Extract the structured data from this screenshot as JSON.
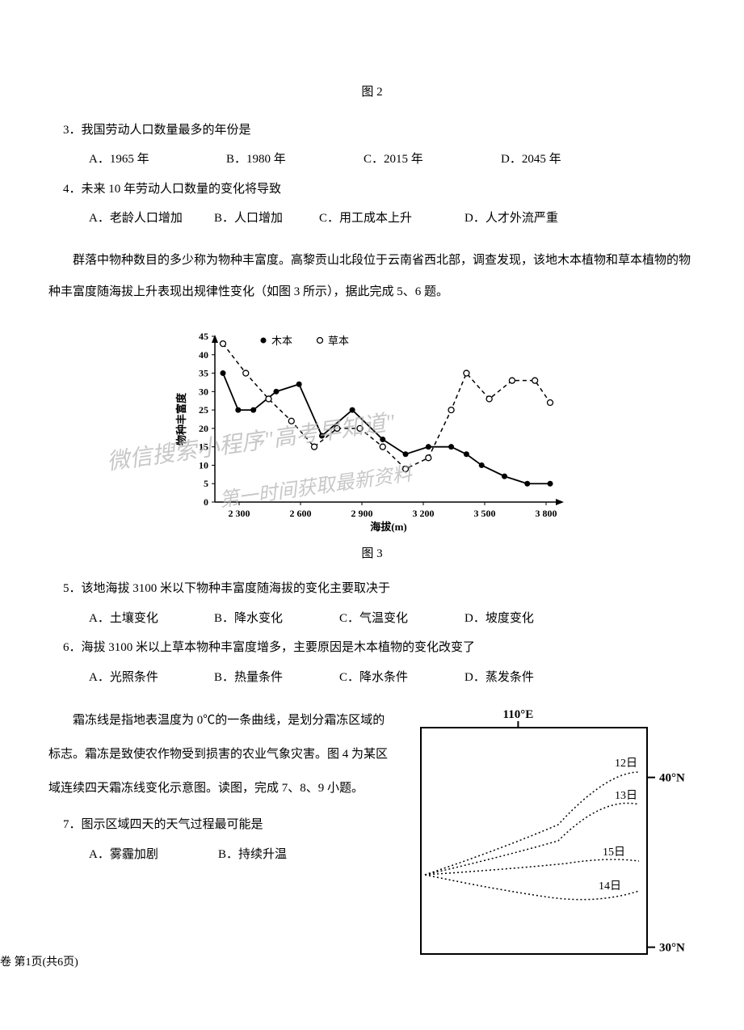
{
  "fig2_label": "图 2",
  "q3": {
    "text": "3．我国劳动人口数量最多的年份是",
    "opts": [
      "A．1965 年",
      "B．1980 年",
      "C．2015 年",
      "D．2045 年"
    ]
  },
  "q4": {
    "text": "4．未来 10 年劳动人口数量的变化将导致",
    "opts": [
      "A．老龄人口增加",
      "B．人口增加",
      "C．用工成本上升",
      "D．人才外流严重"
    ]
  },
  "passage1": "群落中物种数目的多少称为物种丰富度。高黎贡山北段位于云南省西北部，调查发现，该地木本植物和草本植物的物种丰富度随海拔上升表现出规律性变化（如图 3 所示），据此完成 5、6 题。",
  "chart1": {
    "ytitle": "物种丰富度",
    "xtitle": "海拔(m)",
    "yticks": [
      "0",
      "5",
      "10",
      "15",
      "20",
      "25",
      "30",
      "35",
      "40",
      "45"
    ],
    "xticks": [
      "2 300",
      "2 600",
      "2 900",
      "3 200",
      "3 500",
      "3 800"
    ],
    "legend_woody": "● 木本",
    "legend_herb": "○ 草本",
    "woody": [
      [
        0,
        35
      ],
      [
        20,
        25
      ],
      [
        40,
        25
      ],
      [
        70,
        30
      ],
      [
        100,
        32
      ],
      [
        130,
        18
      ],
      [
        170,
        25
      ],
      [
        210,
        17
      ],
      [
        240,
        13
      ],
      [
        270,
        15
      ],
      [
        300,
        15
      ],
      [
        320,
        13
      ],
      [
        340,
        10
      ],
      [
        370,
        7
      ],
      [
        400,
        5
      ],
      [
        430,
        5
      ]
    ],
    "herb": [
      [
        0,
        43
      ],
      [
        30,
        35
      ],
      [
        60,
        28
      ],
      [
        90,
        22
      ],
      [
        120,
        15
      ],
      [
        150,
        20
      ],
      [
        180,
        20
      ],
      [
        210,
        15
      ],
      [
        240,
        9
      ],
      [
        270,
        12
      ],
      [
        300,
        25
      ],
      [
        320,
        35
      ],
      [
        350,
        28
      ],
      [
        380,
        33
      ],
      [
        410,
        33
      ],
      [
        430,
        27
      ]
    ],
    "colors": {
      "line": "#000000",
      "bg": "#ffffff"
    }
  },
  "fig3_label": "图 3",
  "watermark1": "微信搜索小程序\"高考早知道\"",
  "watermark2": "第一时间获取最新资料",
  "q5": {
    "text": "5．该地海拔 3100 米以下物种丰富度随海拔的变化主要取决于",
    "opts": [
      "A．土壤变化",
      "B．降水变化",
      "C．气温变化",
      "D．坡度变化"
    ]
  },
  "q6": {
    "text": "6．海拔 3100 米以上草本物种丰富度增多，主要原因是木本植物的变化改变了",
    "opts": [
      "A．光照条件",
      "B．热量条件",
      "C．降水条件",
      "D．蒸发条件"
    ]
  },
  "passage2": "霜冻线是指地表温度为 0℃的一条曲线，是划分霜冻区域的标志。霜冻是致使农作物受到损害的农业气象灾害。图 4 为某区域连续四天霜冻线变化示意图。读图，完成 7、8、9 小题。",
  "q7": {
    "text": "7．图示区域四天的天气过程最可能是",
    "opts": [
      "A．雾霾加剧",
      "B．持续升温"
    ]
  },
  "map": {
    "lon": "110°E",
    "lat_top": "40°N",
    "lat_bot": "30°N",
    "days": [
      "12日",
      "13日",
      "14日",
      "15日"
    ]
  },
  "footer": "卷  第1页(共6页)"
}
